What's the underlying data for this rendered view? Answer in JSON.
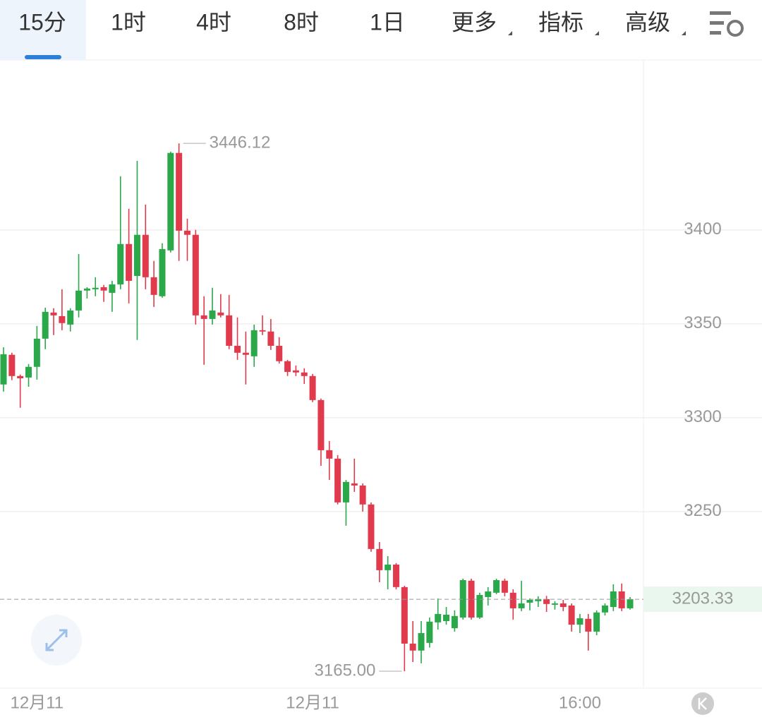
{
  "tabs": [
    "15分",
    "1时",
    "4时",
    "8时",
    "1日",
    "更多",
    "指标",
    "高级"
  ],
  "selected_tab": 0,
  "chart_data": {
    "type": "candlestick",
    "up_color": "#2aa84a",
    "down_color": "#e03a4c",
    "ylim": [
      3156,
      3490.5
    ],
    "yticks": [
      3250,
      3300,
      3350,
      3400
    ],
    "grid": true,
    "categories": [
      null,
      null,
      null,
      null,
      "12月11",
      null,
      null,
      null,
      null,
      null,
      null,
      null,
      null,
      null,
      null,
      null,
      null,
      null,
      null,
      null,
      null,
      null,
      null,
      null,
      null,
      null,
      null,
      null,
      null,
      null,
      null,
      null,
      null,
      null,
      null,
      null,
      null,
      "12月11",
      null,
      null,
      null,
      null,
      null,
      null,
      null,
      null,
      null,
      null,
      null,
      null,
      null,
      null,
      null,
      null,
      null,
      null,
      null,
      null,
      null,
      null,
      null,
      null,
      null,
      null,
      null,
      null,
      null,
      null,
      null,
      "16:00",
      null,
      null,
      null,
      null,
      null,
      null
    ],
    "open": [
      3317.7,
      3333.5,
      3322.2,
      3321.4,
      3327.1,
      3342.1,
      3356,
      3354.1,
      3349.6,
      3357.1,
      3367.7,
      3368.4,
      3369.5,
      3366.5,
      3371,
      3392.5,
      3375.5,
      3397.4,
      3374.8,
      3364.7,
      3389.1,
      3441,
      3399.6,
      3397.4,
      3354.5,
      3352.6,
      3356,
      3354.5,
      3338.3,
      3334.6,
      3332.7,
      3346.6,
      3345.9,
      3338.3,
      3330.1,
      3325.2,
      3324.1,
      3322.2,
      3309.4,
      3282.7,
      3278.2,
      3254.9,
      3265,
      3263.9,
      3253.8,
      3230.1,
      3218.8,
      3221.8,
      3209.8,
      3179.7,
      3176,
      3180.1,
      3191,
      3191.7,
      3187.9,
      3193.6,
      3213.2,
      3193.6,
      3204.5,
      3206.8,
      3213.2,
      3206.8,
      3198.5,
      3201.5,
      3202.3,
      3203.4,
      3200.4,
      3201.1,
      3200,
      3189.8,
      3192.9,
      3186.1,
      3196.3,
      3199.2,
      3207.5,
      3198.5
    ],
    "high": [
      3337.5,
      3334.6,
      3323,
      3328.6,
      3348.9,
      3358.6,
      3358.3,
      3368.4,
      3358.3,
      3387.2,
      3369.5,
      3374.8,
      3370.7,
      3372.9,
      3428.6,
      3411.3,
      3436.8,
      3413.5,
      3383.5,
      3392.9,
      3441.7,
      3446.12,
      3406,
      3400,
      3364.7,
      3369.2,
      3365.8,
      3365.4,
      3353.4,
      3345.9,
      3349.6,
      3354.5,
      3352.6,
      3342.9,
      3330.8,
      3327.8,
      3326.3,
      3323.3,
      3310.2,
      3287.6,
      3280.1,
      3266.9,
      3278.2,
      3265,
      3254.9,
      3233.8,
      3226.3,
      3222.6,
      3210.5,
      3191.7,
      3191.7,
      3193.6,
      3203.8,
      3199.2,
      3197.4,
      3214.3,
      3214.3,
      3206.8,
      3209.8,
      3214.3,
      3214.3,
      3208.6,
      3213.2,
      3203.8,
      3204.9,
      3205.1,
      3202.3,
      3203,
      3201.1,
      3195.5,
      3195.5,
      3197.4,
      3201.1,
      3211.3,
      3211.7,
      3204.5
    ],
    "low": [
      3313.9,
      3320,
      3305.3,
      3316.5,
      3320.3,
      3336.5,
      3344,
      3346.6,
      3345.9,
      3353.4,
      3363.5,
      3364.7,
      3361.7,
      3356.4,
      3368.4,
      3360.9,
      3341.4,
      3368.4,
      3359,
      3363.9,
      3388,
      3383.5,
      3383.5,
      3349.6,
      3328.2,
      3349.6,
      3353.4,
      3336.5,
      3330.8,
      3317.7,
      3327.1,
      3344,
      3336.1,
      3328.9,
      3322.2,
      3322.2,
      3318,
      3308.3,
      3274.4,
      3266.9,
      3253.8,
      3242.5,
      3260.5,
      3250,
      3228.6,
      3212.4,
      3208.6,
      3208.6,
      3165,
      3169.9,
      3169.2,
      3177.6,
      3187.2,
      3189.8,
      3186.1,
      3192.5,
      3192.5,
      3192.9,
      3200,
      3206,
      3204.9,
      3192.5,
      3197,
      3197.4,
      3199.2,
      3196.6,
      3197.8,
      3197,
      3186.1,
      3185.3,
      3176,
      3184.2,
      3194.7,
      3197,
      3197,
      3197.8
    ],
    "close": [
      3333.8,
      3322.2,
      3321,
      3327.1,
      3342.1,
      3356.4,
      3354.5,
      3350.4,
      3357.1,
      3367.7,
      3368.8,
      3369.2,
      3367.7,
      3371,
      3392.5,
      3372.9,
      3397.4,
      3374.8,
      3365.4,
      3389.8,
      3441,
      3399.6,
      3397.4,
      3354.5,
      3352.6,
      3357.1,
      3354.5,
      3338.3,
      3334.6,
      3333.5,
      3346.6,
      3345.9,
      3338.3,
      3330.1,
      3324.4,
      3324.1,
      3322.2,
      3309.4,
      3282.7,
      3278.2,
      3254.9,
      3265.8,
      3263.9,
      3253.8,
      3230.1,
      3218.8,
      3221.8,
      3209.8,
      3179.7,
      3176,
      3185.3,
      3191.4,
      3195.5,
      3195.1,
      3194.4,
      3213.5,
      3193.6,
      3205.6,
      3207.5,
      3213.5,
      3206.8,
      3198.5,
      3201.1,
      3203,
      3203.4,
      3200.8,
      3201.1,
      3199.2,
      3189.8,
      3193.2,
      3186.1,
      3196.3,
      3200,
      3207.5,
      3198.5,
      3203.33
    ],
    "max_label": 3446.12,
    "min_label": {
      "value": 3165,
      "label": "3165.00"
    },
    "last_price": 3203.33
  }
}
